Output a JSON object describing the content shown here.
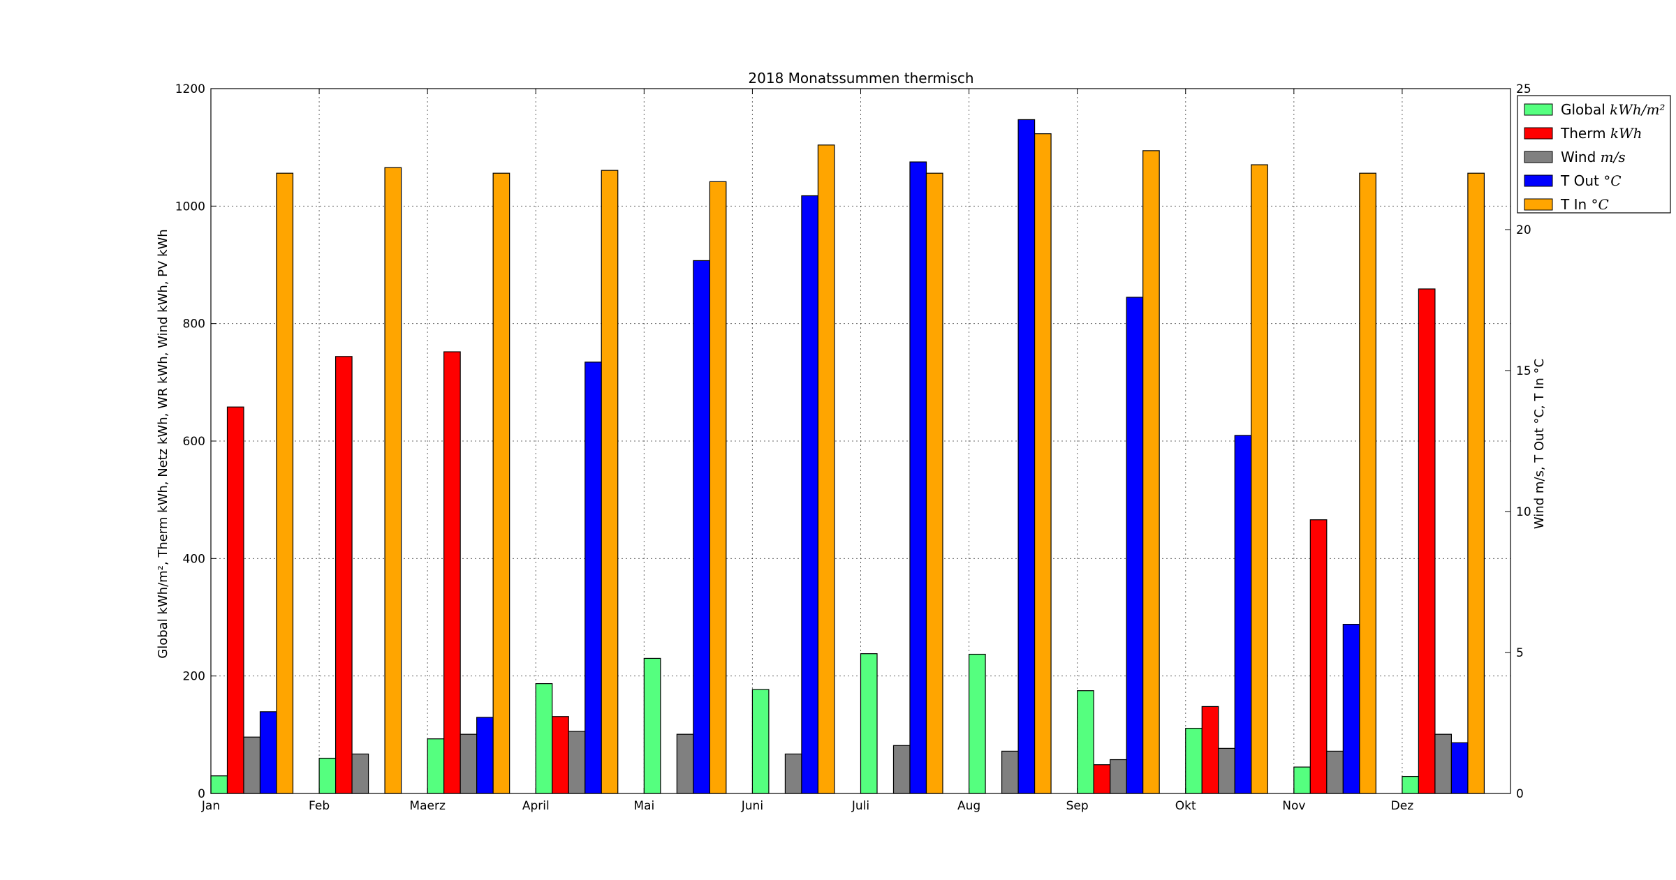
{
  "chart_data": {
    "type": "bar",
    "title": "2018 Monatssummen thermisch",
    "ylabel_left": "Global kWh/m², Therm kWh, Netz kWh, WR kWh, Wind kWh, PV kWh",
    "ylabel_right": "Wind m/s, T Out °C, T In °C",
    "categories": [
      "Jan",
      "Feb",
      "Maerz",
      "April",
      "Mai",
      "Juni",
      "Juli",
      "Aug",
      "Sep",
      "Okt",
      "Nov",
      "Dez"
    ],
    "ylim_left": [
      0,
      1200
    ],
    "ylim_right": [
      0,
      25
    ],
    "yticks_left": [
      0,
      200,
      400,
      600,
      800,
      1000,
      1200
    ],
    "yticks_right": [
      0,
      5,
      10,
      15,
      20,
      25
    ],
    "grid": true,
    "legend_position": "outside top-right",
    "series": [
      {
        "name": "Global",
        "unit": "kWh/m²",
        "color": "#55ff7f",
        "axis": "left",
        "values": [
          30,
          60,
          93,
          187,
          230,
          177,
          238,
          237,
          175,
          111,
          45,
          29
        ]
      },
      {
        "name": "Therm",
        "unit": "kWh",
        "color": "#ff0000",
        "axis": "left",
        "values": [
          658,
          744,
          752,
          131,
          null,
          null,
          null,
          null,
          49,
          148,
          466,
          859
        ]
      },
      {
        "name": "Wind",
        "unit": "m/s",
        "color": "#808080",
        "axis": "right",
        "values": [
          2.0,
          1.4,
          2.1,
          2.2,
          2.1,
          1.4,
          1.7,
          1.5,
          1.2,
          1.6,
          1.5,
          2.1
        ]
      },
      {
        "name": "T Out",
        "unit": "°C",
        "color": "#0000ff",
        "axis": "right",
        "values": [
          2.9,
          null,
          2.7,
          15.3,
          18.9,
          21.2,
          22.4,
          23.9,
          17.6,
          12.7,
          6.0,
          1.8
        ]
      },
      {
        "name": "T In",
        "unit": "°C",
        "color": "#ffa500",
        "axis": "right",
        "values": [
          22.0,
          22.2,
          22.0,
          22.1,
          21.7,
          23.0,
          22.0,
          23.4,
          22.8,
          22.3,
          22.0,
          22.0
        ]
      }
    ]
  }
}
